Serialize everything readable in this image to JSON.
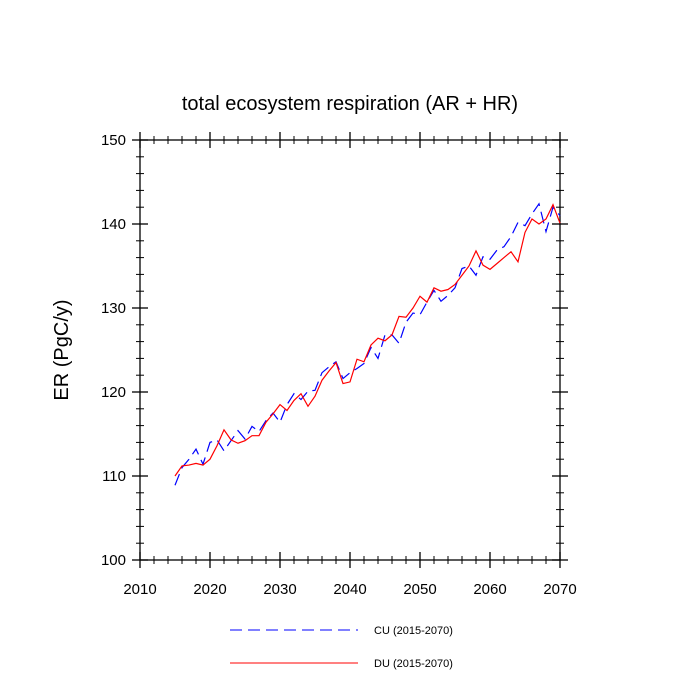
{
  "chart_data": {
    "type": "line",
    "title": "total ecosystem respiration (AR + HR)",
    "xlabel": "",
    "ylabel": "ER  (PgC/y)",
    "xlim": [
      2010,
      2070
    ],
    "ylim": [
      100,
      150
    ],
    "x_ticks": [
      2010,
      2020,
      2030,
      2040,
      2050,
      2060,
      2070
    ],
    "x_tick_labels": [
      "2010",
      "2020",
      "2030",
      "2040",
      "2050",
      "2060",
      "2070"
    ],
    "y_ticks": [
      100,
      110,
      120,
      130,
      140,
      150
    ],
    "y_tick_labels": [
      "100",
      "110",
      "120",
      "130",
      "140",
      "150"
    ],
    "x_minor_step": 2,
    "y_minor_step": 2,
    "grid": false,
    "legend_position": "bottom",
    "x": [
      2015,
      2016,
      2017,
      2018,
      2019,
      2020,
      2021,
      2022,
      2023,
      2024,
      2025,
      2026,
      2027,
      2028,
      2029,
      2030,
      2031,
      2032,
      2033,
      2034,
      2035,
      2036,
      2037,
      2038,
      2039,
      2040,
      2041,
      2042,
      2043,
      2044,
      2045,
      2046,
      2047,
      2048,
      2049,
      2050,
      2051,
      2052,
      2053,
      2054,
      2055,
      2056,
      2057,
      2058,
      2059,
      2060,
      2061,
      2062,
      2063,
      2064,
      2065,
      2066,
      2067,
      2068,
      2069,
      2070
    ],
    "series": [
      {
        "name": "CU (2015-2070)",
        "color": "#0000ff",
        "dash": "dashed",
        "values": [
          108.9,
          111.0,
          112.0,
          113.2,
          111.4,
          114.0,
          114.3,
          113.0,
          114.2,
          115.4,
          114.4,
          115.9,
          115.3,
          116.6,
          117.5,
          116.4,
          118.5,
          119.8,
          119.1,
          120.1,
          120.2,
          122.3,
          123.0,
          123.6,
          121.6,
          122.3,
          122.8,
          123.4,
          125.3,
          124.0,
          126.8,
          126.8,
          125.8,
          128.3,
          129.4,
          129.2,
          130.7,
          132.1,
          130.8,
          131.5,
          132.4,
          134.7,
          135.0,
          133.9,
          136.1,
          135.8,
          136.9,
          137.3,
          138.5,
          140.2,
          139.8,
          141.2,
          142.4,
          139.1,
          142.0,
          141.0
        ]
      },
      {
        "name": "DU (2015-2070)",
        "color": "#ff0000",
        "dash": "solid",
        "values": [
          110.0,
          111.2,
          111.3,
          111.5,
          111.3,
          112.0,
          113.6,
          115.5,
          114.3,
          113.9,
          114.2,
          114.8,
          114.8,
          116.4,
          117.4,
          118.5,
          117.8,
          119.0,
          119.8,
          118.3,
          119.5,
          121.4,
          122.5,
          123.5,
          121.0,
          121.2,
          123.9,
          123.6,
          125.6,
          126.4,
          126.1,
          126.8,
          129.0,
          128.9,
          130.0,
          131.4,
          130.7,
          132.4,
          132.0,
          132.2,
          132.8,
          133.9,
          135.0,
          136.8,
          135.1,
          134.6,
          135.3,
          136.0,
          136.7,
          135.5,
          139.0,
          140.6,
          140.0,
          140.6,
          142.3,
          140.1
        ]
      }
    ]
  }
}
